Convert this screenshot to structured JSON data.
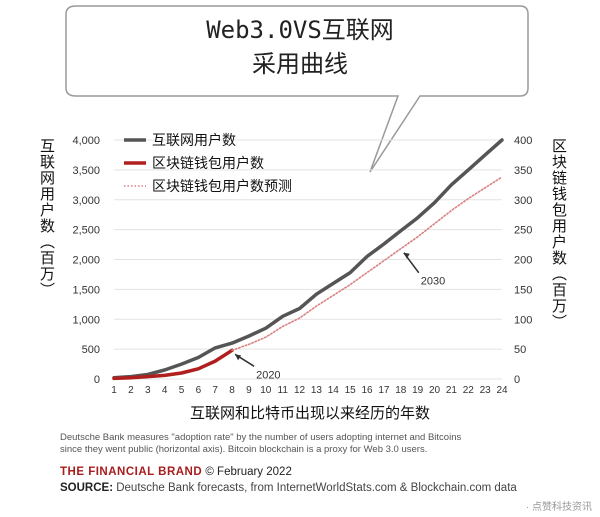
{
  "callout": {
    "line1": "Web3.0VS互联网",
    "line2": "采用曲线"
  },
  "axis_labels": {
    "left": "互联网用户数（百万）",
    "right": "区块链钱包用户数（百万）",
    "bottom": "互联网和比特币出现以来经历的年数"
  },
  "footnote": {
    "line1": "Deutsche Bank measures \"adoption rate\" by the number of users adopting internet and Bitcoins",
    "line2": "since they went public (horizontal axis). Bitcoin blockchain is a proxy for Web 3.0 users."
  },
  "brand": {
    "name": "THE FINANCIAL BRAND",
    "date": "© February 2022"
  },
  "source": {
    "label": "SOURCE:",
    "text": "Deutsche Bank forecasts, from InternetWorldStats.com & Blockchain.com data"
  },
  "watermark": "· 点赞科技资讯",
  "colors": {
    "internet": "#555555",
    "wallet": "#b01e1e",
    "forecast": "#d98080",
    "callout_bg": "#ffffff",
    "callout_border": "#9a9a9a"
  },
  "chart_data": {
    "type": "line",
    "x": [
      1,
      2,
      3,
      4,
      5,
      6,
      7,
      8,
      9,
      10,
      11,
      12,
      13,
      14,
      15,
      16,
      17,
      18,
      19,
      20,
      21,
      22,
      23,
      24
    ],
    "xlim": [
      1,
      24
    ],
    "x_ticks": [
      "1",
      "2",
      "3",
      "4",
      "5",
      "6",
      "7",
      "8",
      "9",
      "10",
      "11",
      "12",
      "13",
      "14",
      "15",
      "16",
      "17",
      "18",
      "19",
      "20",
      "21",
      "22",
      "23",
      "24"
    ],
    "y_left": {
      "ylim": [
        0,
        4000
      ],
      "ticks": [
        "0",
        "500",
        "1,000",
        "1,500",
        "2,000",
        "2,500",
        "3,000",
        "3,500",
        "4,000"
      ]
    },
    "y_right": {
      "ylim": [
        0,
        400
      ],
      "ticks": [
        "0",
        "50",
        "100",
        "150",
        "200",
        "250",
        "300",
        "350",
        "400"
      ]
    },
    "series": [
      {
        "name": "互联网用户数",
        "axis": "left",
        "style": "solid",
        "x": [
          1,
          2,
          3,
          4,
          5,
          6,
          7,
          8,
          9,
          10,
          11,
          12,
          13,
          14,
          15,
          16,
          17,
          18,
          19,
          20,
          21,
          22,
          23,
          24
        ],
        "values": [
          20,
          40,
          75,
          150,
          250,
          360,
          520,
          600,
          720,
          850,
          1050,
          1180,
          1420,
          1600,
          1780,
          2050,
          2260,
          2480,
          2700,
          2950,
          3250,
          3500,
          3750,
          4000
        ]
      },
      {
        "name": "区块链钱包用户数",
        "axis": "right",
        "style": "solid",
        "x": [
          1,
          2,
          3,
          4,
          5,
          6,
          7,
          8
        ],
        "values": [
          1,
          2,
          4,
          6,
          10,
          17,
          30,
          48
        ]
      },
      {
        "name": "区块链钱包用户数预测",
        "axis": "right",
        "style": "dotted",
        "x": [
          8,
          9,
          10,
          11,
          12,
          13,
          14,
          15,
          16,
          17,
          18,
          19,
          20,
          21,
          22,
          23,
          24
        ],
        "values": [
          48,
          58,
          70,
          88,
          102,
          122,
          140,
          158,
          178,
          198,
          218,
          238,
          260,
          282,
          302,
          320,
          338
        ]
      }
    ],
    "legend_position": "top-left",
    "annotations": [
      {
        "text": "2020",
        "x": 8,
        "series": "区块链钱包用户数"
      },
      {
        "text": "2030",
        "x": 18,
        "series": "区块链钱包用户数预测"
      }
    ]
  }
}
